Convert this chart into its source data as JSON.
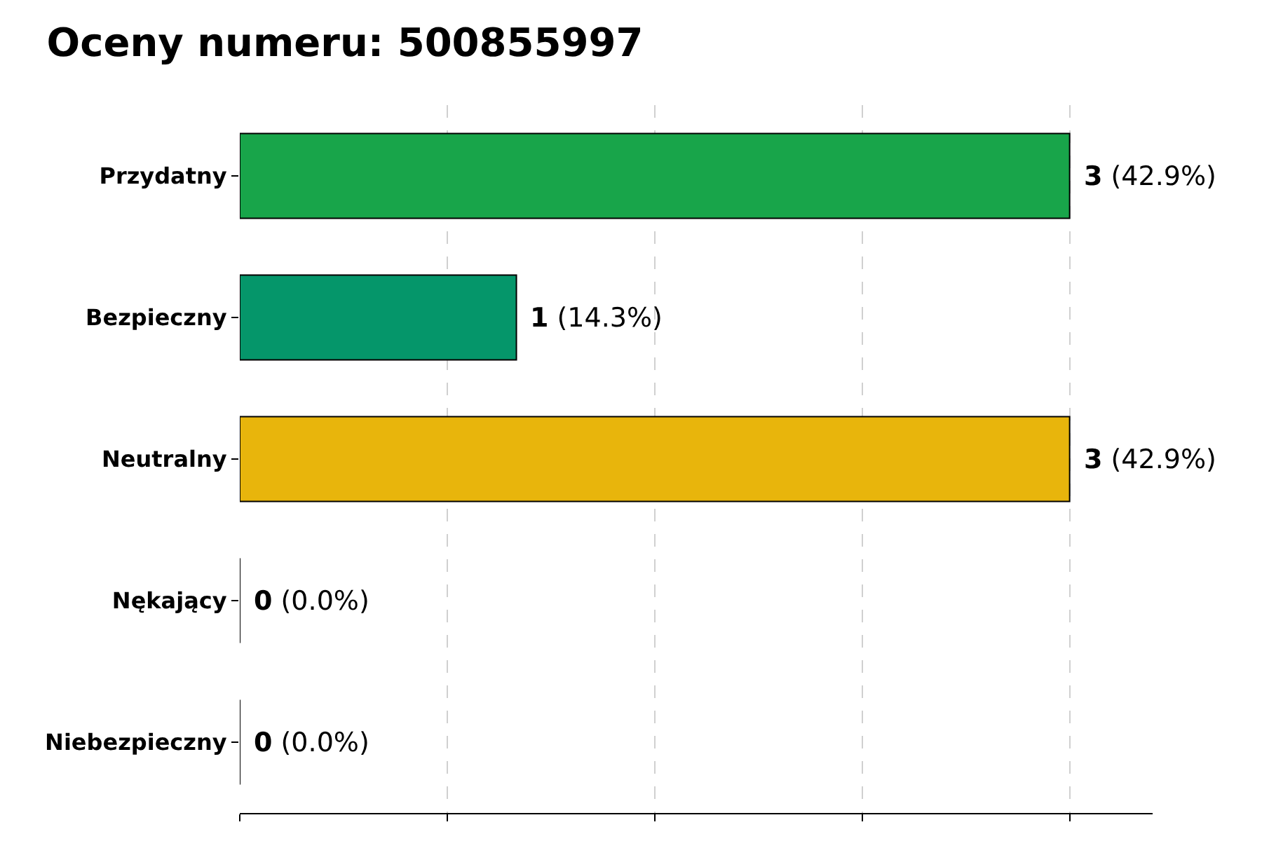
{
  "chart_data": {
    "type": "bar",
    "orientation": "horizontal",
    "title": "Oceny numeru: 500855997",
    "categories": [
      "Przydatny",
      "Bezpieczny",
      "Neutralny",
      "Nękający",
      "Niebezpieczny"
    ],
    "values": [
      3,
      1,
      3,
      0,
      0
    ],
    "colors": [
      "#18a54a",
      "#05966a",
      "#e8b50c",
      "#000000",
      "#000000"
    ],
    "value_labels": [
      "3 (42.9%)",
      "1 (14.3%)",
      "3 (42.9%)",
      "0 (0.0%)",
      "0 (0.0%)"
    ],
    "xlim": [
      0,
      3.3
    ],
    "xticks": [
      {
        "value": 0,
        "label": null
      },
      {
        "value": 0.75,
        "label": null
      },
      {
        "value": 1.5,
        "label": null
      },
      {
        "value": 2.25,
        "label": null
      },
      {
        "value": 3,
        "label": null
      }
    ],
    "grid": "x",
    "tick_labels": "y",
    "legend": false
  }
}
